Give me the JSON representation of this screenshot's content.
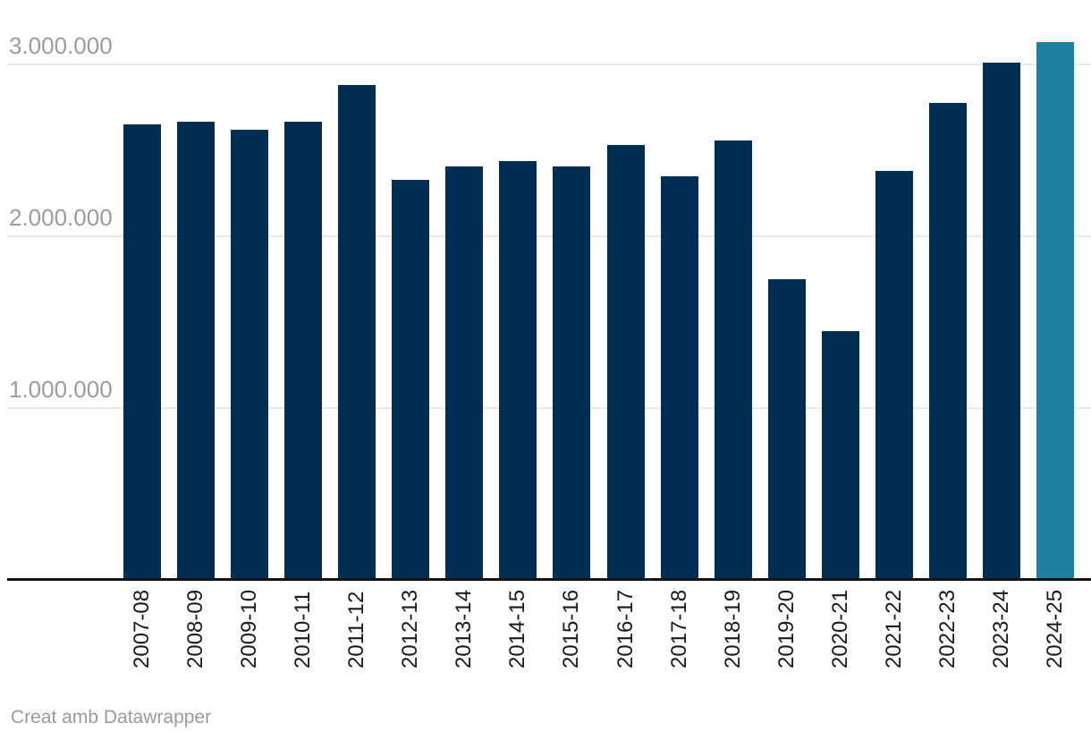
{
  "chart_data": {
    "type": "bar",
    "categories": [
      "2007-08",
      "2008-09",
      "2009-10",
      "2010-11",
      "2011-12",
      "2012-13",
      "2013-14",
      "2014-15",
      "2015-16",
      "2016-17",
      "2017-18",
      "2018-19",
      "2019-20",
      "2020-21",
      "2021-22",
      "2022-23",
      "2023-24",
      "2024-25"
    ],
    "values": [
      2650000,
      2670000,
      2620000,
      2670000,
      2880000,
      2330000,
      2410000,
      2440000,
      2410000,
      2530000,
      2350000,
      2560000,
      1750000,
      1450000,
      2380000,
      2780000,
      3010000,
      3130000
    ],
    "title": "",
    "xlabel": "",
    "ylabel": "",
    "ylim": [
      0,
      3200000
    ],
    "yticks": [
      {
        "value": 3000000,
        "label": "3.000.000"
      },
      {
        "value": 2000000,
        "label": "2.000.000"
      },
      {
        "value": 1000000,
        "label": "1.000.000"
      }
    ],
    "grid": true,
    "legend": "none",
    "bar_color": "#002D52",
    "highlight_color": "#1F81A1",
    "highlight_index": 17,
    "gridline_color": "#E8E8E8",
    "axis_color": "#141414",
    "ytick_color": "#9C9C9C",
    "xtick_color": "#1A1A1A"
  },
  "footer": {
    "attribution": "Creat amb Datawrapper"
  }
}
